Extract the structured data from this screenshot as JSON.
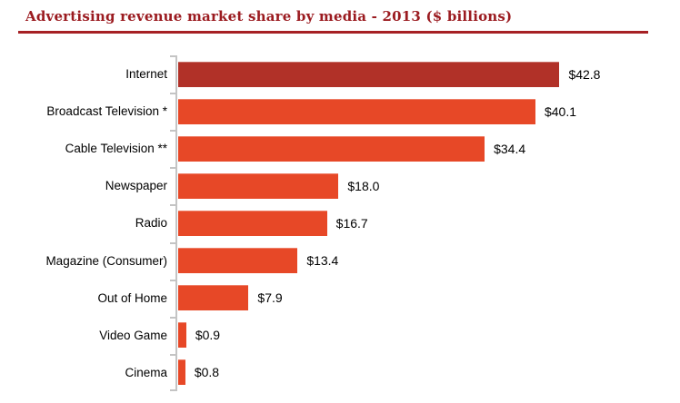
{
  "title": "Advertising revenue market share by media - 2013 ($ billions)",
  "colors": {
    "title_text": "#9B1B20",
    "title_rule": "#A62024",
    "bar_default": "#E74827",
    "bar_highlight": "#B13128",
    "axis": "#C4C4C4",
    "label_text": "#000000"
  },
  "chart_data": {
    "type": "bar",
    "orientation": "horizontal",
    "title": "Advertising revenue market share by media - 2013 ($ billions)",
    "unit": "$ billions",
    "categories": [
      "Internet",
      "Broadcast Television *",
      "Cable Television **",
      "Newspaper",
      "Radio",
      "Magazine (Consumer)",
      "Out of Home",
      "Video Game",
      "Cinema"
    ],
    "values": [
      42.8,
      40.1,
      34.4,
      18.0,
      16.7,
      13.4,
      7.9,
      0.9,
      0.8
    ],
    "value_labels": [
      "$42.8",
      "$40.1",
      "$34.4",
      "$18.0",
      "$16.7",
      "$13.4",
      "$7.9",
      "$0.9",
      "$0.8"
    ],
    "highlighted_category": "Internet",
    "xlim": [
      0,
      44
    ],
    "grid": false,
    "legend": false,
    "value_labels_position": "end-of-bar"
  }
}
